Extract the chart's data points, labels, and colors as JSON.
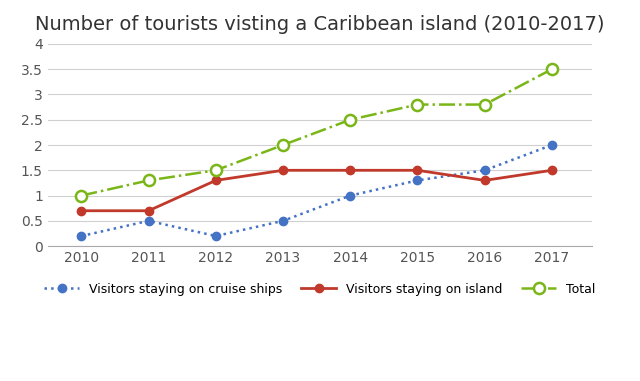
{
  "title": "Number of tourists visting a Caribbean island (2010-2017)",
  "years": [
    2010,
    2011,
    2012,
    2013,
    2014,
    2015,
    2016,
    2017
  ],
  "cruise_ships": [
    0.2,
    0.5,
    0.2,
    0.5,
    1.0,
    1.3,
    1.5,
    2.0
  ],
  "island": [
    0.7,
    0.7,
    1.3,
    1.5,
    1.5,
    1.5,
    1.3,
    1.5
  ],
  "total": [
    1.0,
    1.3,
    1.5,
    2.0,
    2.5,
    2.8,
    2.8,
    3.5
  ],
  "cruise_color": "#4472c4",
  "island_color": "#c0392b",
  "total_color": "#7ab618",
  "ylim": [
    0,
    4
  ],
  "yticks": [
    0,
    0.5,
    1.0,
    1.5,
    2.0,
    2.5,
    3.0,
    3.5,
    4.0
  ],
  "legend_cruise": "Visitors staying on cruise ships",
  "legend_island": "Visitors staying on island",
  "legend_total": "Total",
  "bg_color": "#ffffff",
  "grid_color": "#d0d0d0",
  "title_fontsize": 14,
  "tick_fontsize": 10
}
